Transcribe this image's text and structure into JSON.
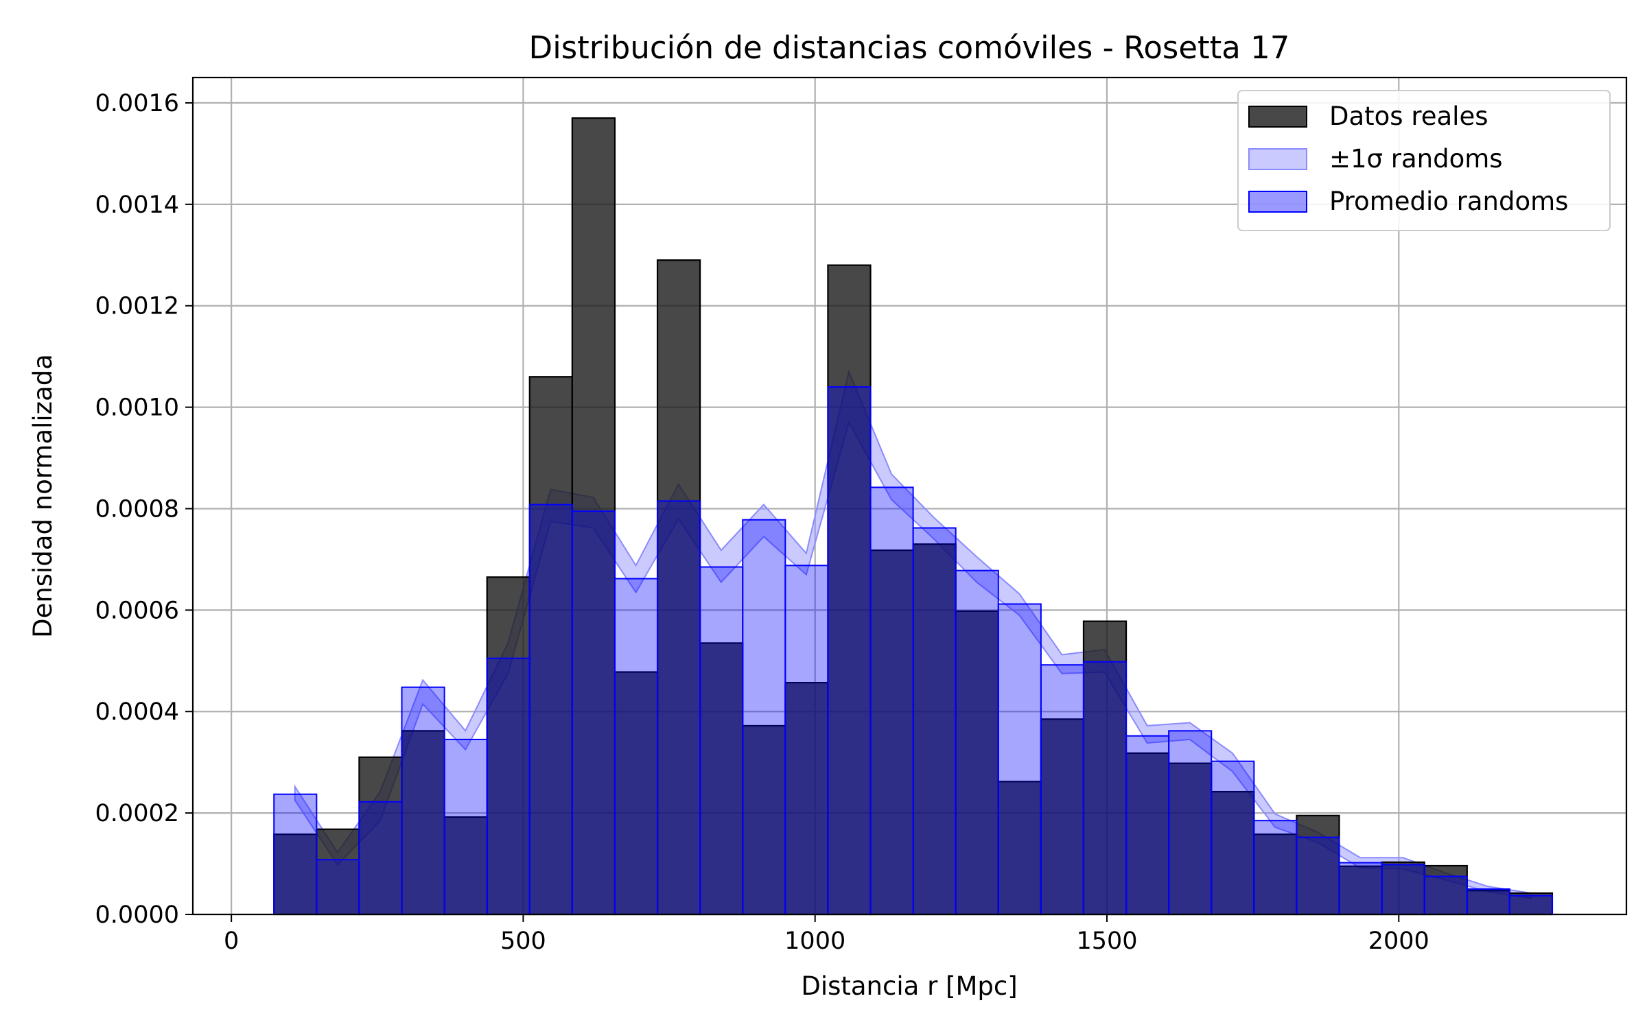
{
  "chart_data": {
    "type": "bar",
    "title": "Distribución de distancias comóviles - Rosetta 17",
    "xlabel": "Distancia r [Mpc]",
    "ylabel": "Densidad normalizada",
    "xlim": [
      -66,
      2390
    ],
    "ylim": [
      0,
      0.00165
    ],
    "xticks": [
      0,
      500,
      1000,
      1500,
      2000
    ],
    "xtick_labels": [
      "0",
      "500",
      "1000",
      "1500",
      "2000"
    ],
    "yticks": [
      0,
      0.0002,
      0.0004,
      0.0006,
      0.0008,
      0.001,
      0.0012,
      0.0014,
      0.0016
    ],
    "ytick_labels": [
      "0.0000",
      "0.0002",
      "0.0004",
      "0.0006",
      "0.0008",
      "0.0010",
      "0.0012",
      "0.0014",
      "0.0016"
    ],
    "grid": true,
    "legend_position": "top-right",
    "legend": [
      "Datos reales",
      "±1σ randoms",
      "Promedio randoms"
    ],
    "bin_edges": [
      73,
      146,
      219,
      292,
      365,
      438,
      511,
      584,
      657,
      730,
      803,
      876,
      949,
      1022,
      1095,
      1168,
      1241,
      1314,
      1387,
      1460,
      1533,
      1606,
      1679,
      1752,
      1825,
      1898,
      1971,
      2044,
      2117,
      2190,
      2263
    ],
    "series": [
      {
        "name": "Datos reales",
        "kind": "histogram",
        "color": "#1a1a1a",
        "values": [
          0.000158,
          0.000168,
          0.00031,
          0.000362,
          0.000192,
          0.000665,
          0.00106,
          0.00157,
          0.000478,
          0.00129,
          0.000535,
          0.000372,
          0.000457,
          0.00128,
          0.000718,
          0.00073,
          0.000598,
          0.000262,
          0.000385,
          0.000578,
          0.000318,
          0.000298,
          0.000242,
          0.000158,
          0.000195,
          9.5e-05,
          0.000103,
          9.6e-05,
          4.7e-05,
          4.2e-05
        ]
      },
      {
        "name": "Promedio randoms",
        "kind": "histogram",
        "color": "#0000ff",
        "values": [
          0.000237,
          0.000108,
          0.000222,
          0.000448,
          0.000345,
          0.000505,
          0.000808,
          0.000795,
          0.000662,
          0.000815,
          0.000685,
          0.000778,
          0.000688,
          0.00104,
          0.000842,
          0.000762,
          0.000678,
          0.000612,
          0.000492,
          0.000498,
          0.000352,
          0.000362,
          0.000302,
          0.000185,
          0.000152,
          0.000102,
          9.8e-05,
          7.5e-05,
          5e-05,
          3.7e-05
        ]
      },
      {
        "name": "±1σ randoms",
        "kind": "band",
        "color": "#8a8aff",
        "x": [
          109,
          182,
          255,
          328,
          401,
          474,
          547,
          620,
          693,
          766,
          839,
          912,
          985,
          1058,
          1131,
          1204,
          1277,
          1350,
          1423,
          1496,
          1569,
          1642,
          1715,
          1788,
          1861,
          1934,
          2007,
          2080,
          2153,
          2226
        ],
        "lower": [
          0.000225,
          9.8e-05,
          0.000185,
          0.000415,
          0.000325,
          0.000475,
          0.000775,
          0.000762,
          0.000635,
          0.00078,
          0.000655,
          0.000745,
          0.00067,
          0.00097,
          0.000818,
          0.00074,
          0.000655,
          0.00059,
          0.000475,
          0.000478,
          0.000338,
          0.000345,
          0.000282,
          0.000172,
          0.000142,
          9.2e-05,
          9e-05,
          6.8e-05,
          4.5e-05,
          3.2e-05
        ],
        "upper": [
          0.000252,
          0.000122,
          0.000242,
          0.000462,
          0.000362,
          0.000535,
          0.000838,
          0.000822,
          0.000688,
          0.000848,
          0.000718,
          0.000808,
          0.000712,
          0.00107,
          0.000868,
          0.000782,
          0.000705,
          0.000632,
          0.000512,
          0.000522,
          0.000372,
          0.000378,
          0.000318,
          0.000198,
          0.000162,
          0.000112,
          0.000112,
          8.2e-05,
          5.5e-05,
          4.2e-05
        ]
      }
    ]
  }
}
